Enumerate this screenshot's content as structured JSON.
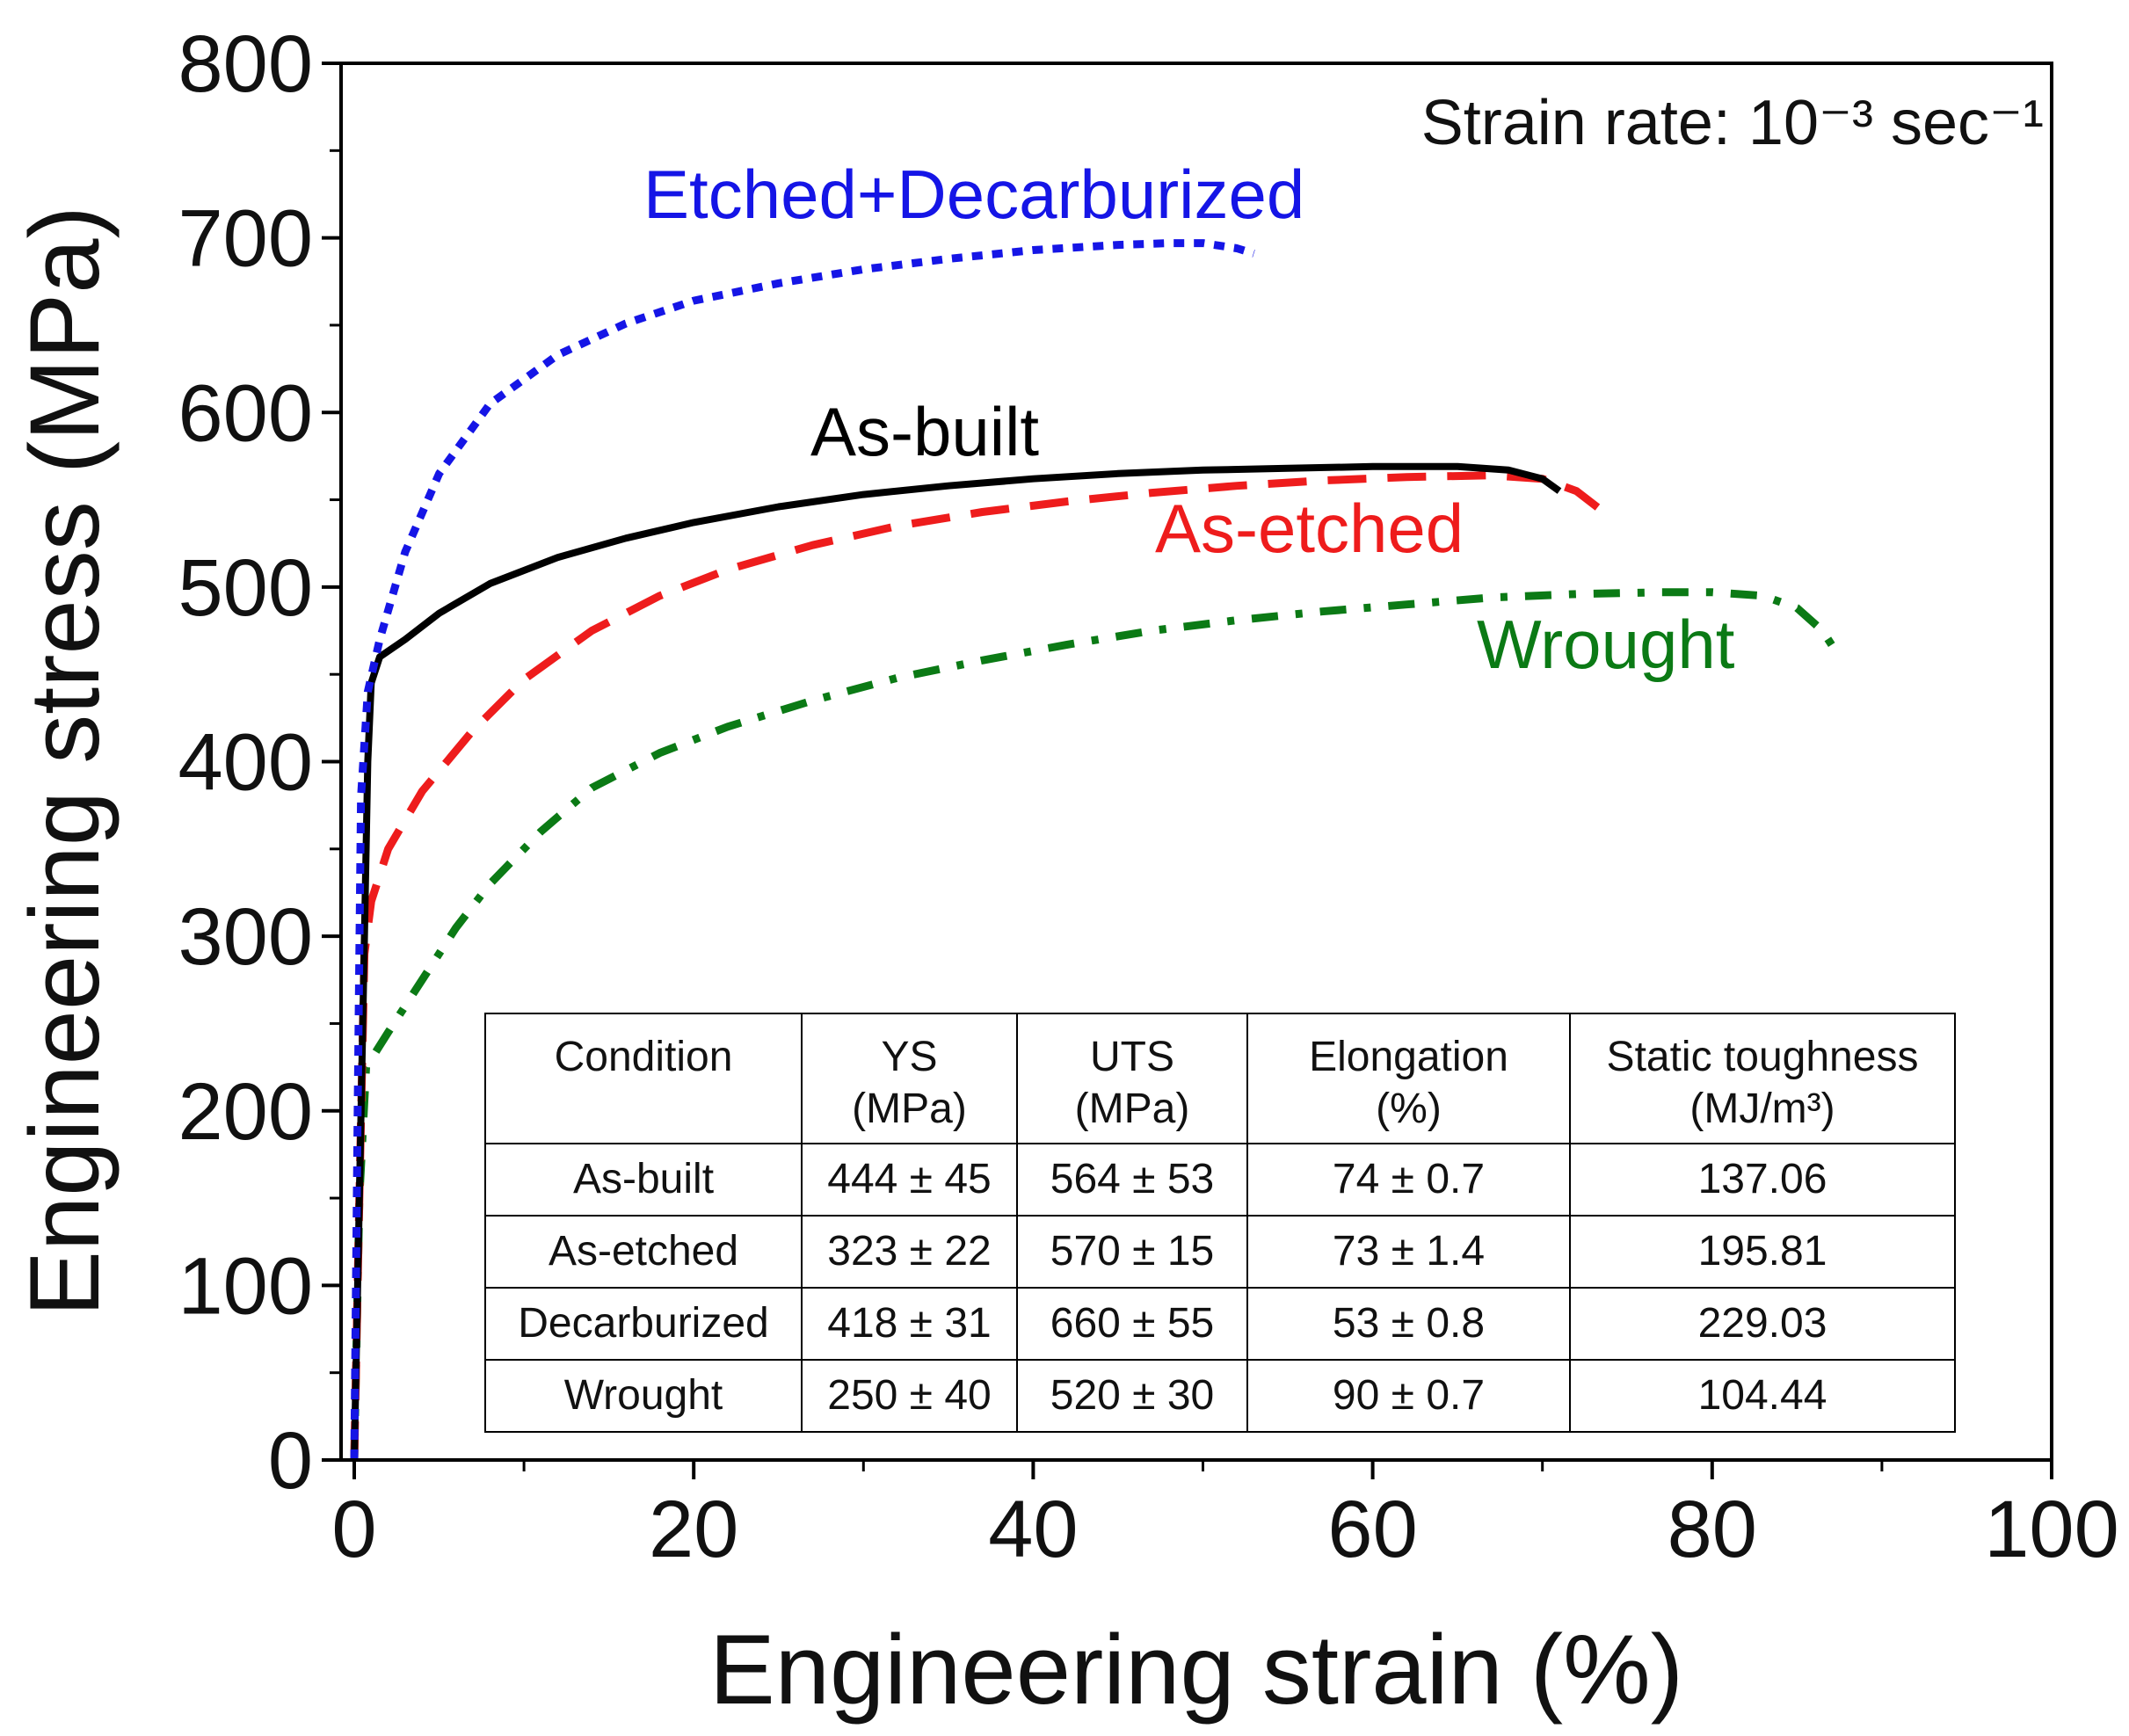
{
  "chart_data": {
    "type": "line",
    "xlabel": "Engineering strain (%)",
    "ylabel": "Engineering stress (MPa)",
    "xlim": [
      0,
      100
    ],
    "ylim": [
      0,
      800
    ],
    "xticks": [
      "0",
      "20",
      "40",
      "60",
      "80",
      "100"
    ],
    "yticks": [
      "0",
      "100",
      "200",
      "300",
      "400",
      "500",
      "600",
      "700",
      "800"
    ],
    "annotation": "Strain rate: 10⁻³ sec⁻¹",
    "series": [
      {
        "name": "Etched+Decarburized",
        "color": "#1515e6",
        "dash": "dotted",
        "points": [
          [
            0,
            0
          ],
          [
            0.2,
            200
          ],
          [
            0.4,
            380
          ],
          [
            0.8,
            440
          ],
          [
            1.5,
            470
          ],
          [
            3,
            520
          ],
          [
            5,
            565
          ],
          [
            8,
            605
          ],
          [
            12,
            633
          ],
          [
            16,
            651
          ],
          [
            20,
            664
          ],
          [
            25,
            674
          ],
          [
            30,
            682
          ],
          [
            35,
            688
          ],
          [
            40,
            693
          ],
          [
            45,
            696
          ],
          [
            48,
            697
          ],
          [
            50,
            697
          ],
          [
            52,
            694
          ],
          [
            53,
            691
          ]
        ]
      },
      {
        "name": "As-built",
        "color": "#000000",
        "dash": "solid",
        "points": [
          [
            0,
            0
          ],
          [
            0.3,
            150
          ],
          [
            0.6,
            300
          ],
          [
            0.8,
            400
          ],
          [
            1,
            445
          ],
          [
            1.5,
            460
          ],
          [
            3,
            470
          ],
          [
            5,
            485
          ],
          [
            8,
            502
          ],
          [
            12,
            517
          ],
          [
            16,
            528
          ],
          [
            20,
            537
          ],
          [
            25,
            546
          ],
          [
            30,
            553
          ],
          [
            35,
            558
          ],
          [
            40,
            562
          ],
          [
            45,
            565
          ],
          [
            50,
            567
          ],
          [
            55,
            568
          ],
          [
            60,
            569
          ],
          [
            65,
            569
          ],
          [
            68,
            567
          ],
          [
            70,
            562
          ],
          [
            71,
            555
          ]
        ]
      },
      {
        "name": "As-etched",
        "color": "#ee1c1c",
        "dash": "dashed",
        "points": [
          [
            0,
            0
          ],
          [
            0.3,
            150
          ],
          [
            0.6,
            290
          ],
          [
            1,
            320
          ],
          [
            2,
            350
          ],
          [
            4,
            383
          ],
          [
            7,
            418
          ],
          [
            10,
            447
          ],
          [
            14,
            475
          ],
          [
            18,
            495
          ],
          [
            22,
            510
          ],
          [
            27,
            524
          ],
          [
            32,
            535
          ],
          [
            37,
            543
          ],
          [
            42,
            549
          ],
          [
            47,
            554
          ],
          [
            52,
            558
          ],
          [
            57,
            561
          ],
          [
            62,
            563
          ],
          [
            67,
            564
          ],
          [
            70,
            562
          ],
          [
            72,
            555
          ],
          [
            74,
            540
          ]
        ]
      },
      {
        "name": "Wrought",
        "color": "#0b7a15",
        "dash": "dashdot",
        "points": [
          [
            0,
            0
          ],
          [
            0.3,
            150
          ],
          [
            0.7,
            225
          ],
          [
            2,
            245
          ],
          [
            4,
            275
          ],
          [
            6,
            305
          ],
          [
            8,
            330
          ],
          [
            11,
            360
          ],
          [
            14,
            385
          ],
          [
            18,
            405
          ],
          [
            22,
            420
          ],
          [
            27,
            435
          ],
          [
            32,
            448
          ],
          [
            37,
            458
          ],
          [
            42,
            467
          ],
          [
            47,
            475
          ],
          [
            52,
            481
          ],
          [
            57,
            486
          ],
          [
            62,
            490
          ],
          [
            67,
            494
          ],
          [
            72,
            496
          ],
          [
            77,
            497
          ],
          [
            80,
            497
          ],
          [
            83,
            495
          ],
          [
            85,
            488
          ],
          [
            86.5,
            475
          ],
          [
            87.5,
            460
          ]
        ]
      }
    ],
    "series_labels": [
      "Etched+Decarburized",
      "As-built",
      "As-etched",
      "Wrought"
    ]
  },
  "table": {
    "headers": [
      [
        "Condition",
        ""
      ],
      [
        "YS",
        "(MPa)"
      ],
      [
        "UTS",
        "(MPa)"
      ],
      [
        "Elongation",
        "(%)"
      ],
      [
        "Static toughness",
        "(MJ/m³)"
      ]
    ],
    "rows": [
      [
        "As-built",
        "444 ± 45",
        "564 ± 53",
        "74 ± 0.7",
        "137.06"
      ],
      [
        "As-etched",
        "323 ± 22",
        "570 ± 15",
        "73 ± 1.4",
        "195.81"
      ],
      [
        "Decarburized",
        "418 ± 31",
        "660 ± 55",
        "53 ± 0.8",
        "229.03"
      ],
      [
        "Wrought",
        "250 ± 40",
        "520 ± 30",
        "90 ± 0.7",
        "104.44"
      ]
    ]
  }
}
